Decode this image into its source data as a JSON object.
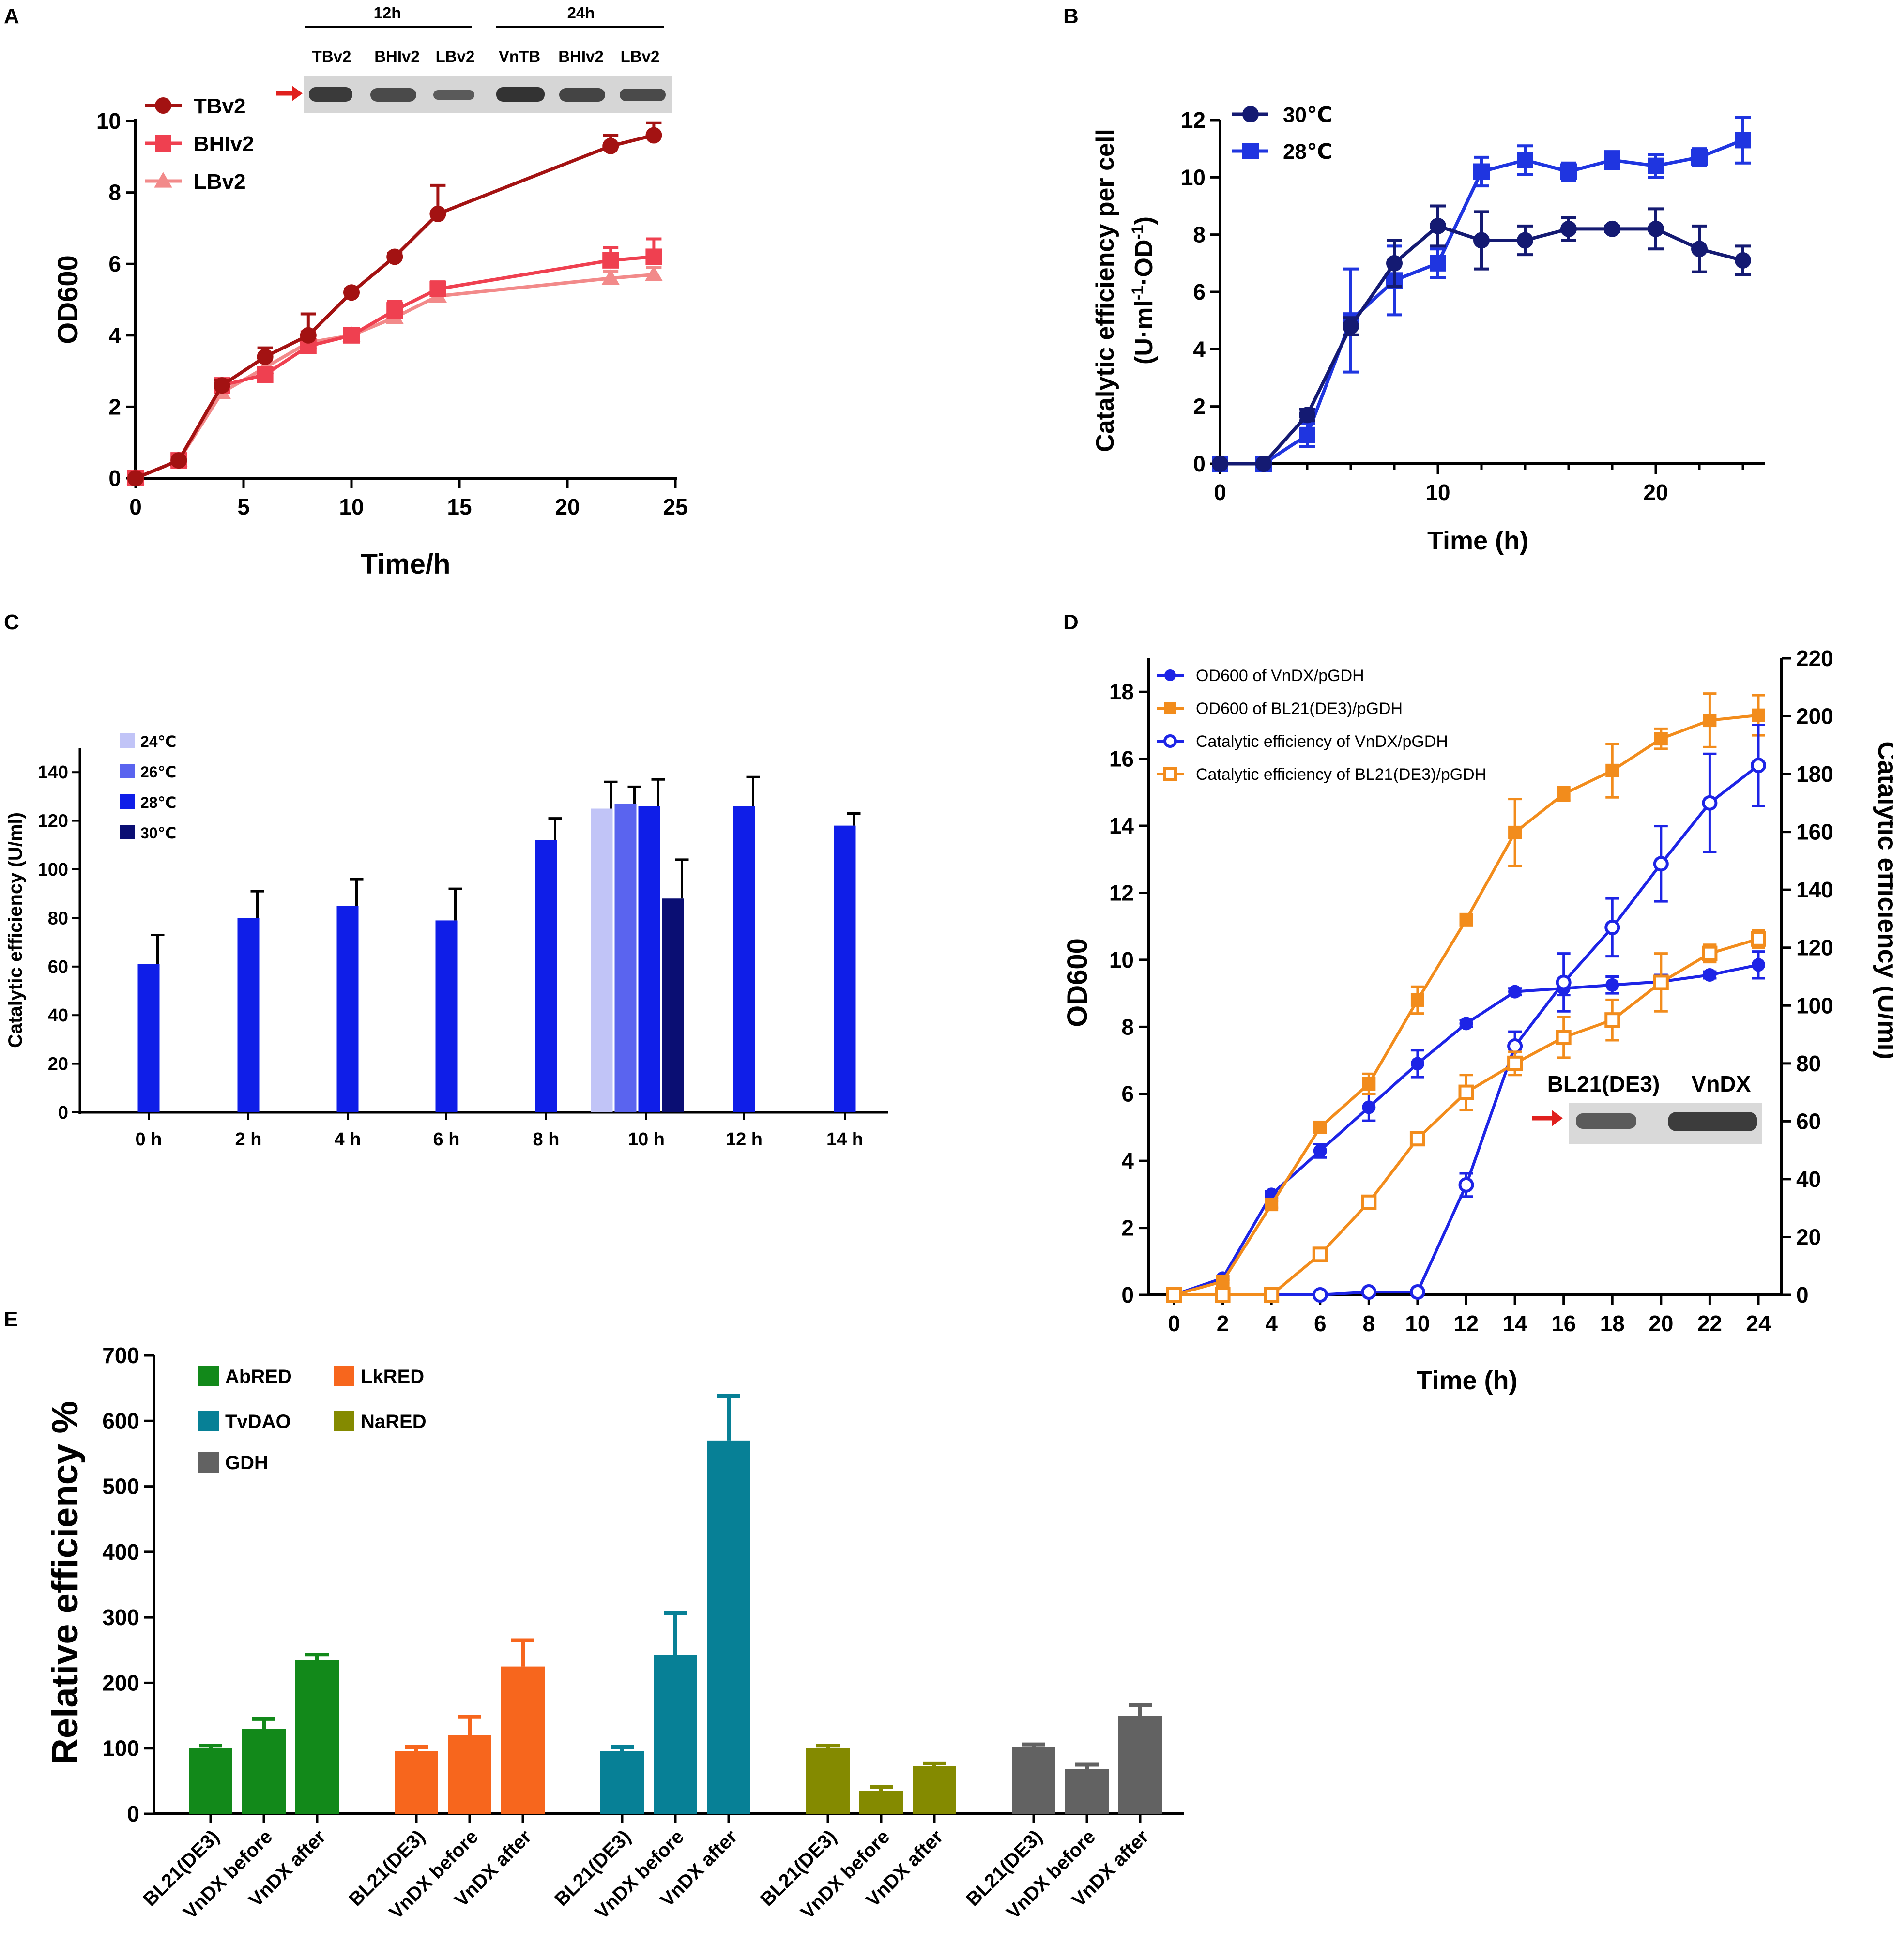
{
  "panels": {
    "A": "A",
    "B": "B",
    "C": "C",
    "D": "D",
    "E": "E"
  },
  "blots": {
    "A": {
      "groups": [
        "12h",
        "24h"
      ],
      "lanes": [
        "TBv2",
        "BHIv2",
        "LBv2",
        "VnTB",
        "BHIv2",
        "LBv2"
      ]
    },
    "D": {
      "lanes": [
        "BL21(DE3)",
        "VnDX"
      ]
    }
  },
  "chart_data": [
    {
      "panel": "A",
      "type": "line",
      "xlabel": "Time/h",
      "ylabel": "OD600",
      "xlim": [
        0,
        25
      ],
      "ylim": [
        0,
        10
      ],
      "xticks": [
        0,
        5,
        10,
        15,
        20,
        25
      ],
      "yticks": [
        0,
        2,
        4,
        6,
        8,
        10
      ],
      "series": [
        {
          "name": "LBv2",
          "color": "#f28a8a",
          "marker": "triangle",
          "x": [
            0,
            2,
            4,
            6,
            8,
            10,
            12,
            14,
            22,
            24
          ],
          "y": [
            0,
            0.5,
            2.4,
            3.1,
            3.8,
            4.0,
            4.5,
            5.1,
            5.6,
            5.7
          ],
          "err": [
            0,
            0.05,
            0.2,
            0.2,
            0.2,
            0.1,
            0.2,
            0.2,
            0.2,
            0.2
          ]
        },
        {
          "name": "BHIv2",
          "color": "#ef4050",
          "marker": "square",
          "x": [
            0,
            2,
            4,
            6,
            8,
            10,
            12,
            14,
            22,
            24
          ],
          "y": [
            0,
            0.5,
            2.6,
            2.9,
            3.7,
            4.0,
            4.7,
            5.3,
            6.1,
            6.2
          ],
          "err": [
            0,
            0.05,
            0.15,
            0.2,
            0.4,
            0.15,
            0.25,
            0.2,
            0.35,
            0.5
          ]
        },
        {
          "name": "TBv2",
          "color": "#a31212",
          "marker": "circle",
          "x": [
            0,
            2,
            4,
            6,
            8,
            10,
            12,
            14,
            22,
            24
          ],
          "y": [
            0,
            0.5,
            2.6,
            3.4,
            4.0,
            5.2,
            6.2,
            7.4,
            9.3,
            9.6
          ],
          "err": [
            0,
            0.05,
            0.15,
            0.25,
            0.6,
            0.1,
            0.1,
            0.8,
            0.3,
            0.35
          ]
        }
      ],
      "legend_order": [
        "TBv2",
        "BHIv2",
        "LBv2"
      ]
    },
    {
      "panel": "B",
      "type": "line",
      "xlabel": "Time (h)",
      "ylabel_line1": "Catalytic efficiency per cell",
      "ylabel_line2": "(U·ml",
      "ylabel_sup1": "-1",
      "ylabel_mid": "·OD",
      "ylabel_sup2": "-1",
      "ylabel_end": ")",
      "xlim": [
        0,
        25
      ],
      "ylim": [
        0,
        12
      ],
      "xticks": [
        0,
        10,
        20
      ],
      "yticks": [
        0,
        2,
        4,
        6,
        8,
        10,
        12
      ],
      "series": [
        {
          "name": "28℃",
          "color": "#1f35e0",
          "marker": "square",
          "x": [
            0,
            2,
            4,
            6,
            8,
            10,
            12,
            14,
            16,
            18,
            20,
            22,
            24
          ],
          "y": [
            0,
            0,
            1.0,
            5.0,
            6.4,
            7.0,
            10.2,
            10.6,
            10.2,
            10.6,
            10.4,
            10.7,
            11.3
          ],
          "err": [
            0,
            0,
            0.4,
            1.8,
            1.2,
            0.5,
            0.5,
            0.5,
            0.3,
            0.3,
            0.4,
            0.3,
            0.8
          ]
        },
        {
          "name": "30℃",
          "color": "#141a72",
          "marker": "circle",
          "x": [
            0,
            2,
            4,
            6,
            8,
            10,
            12,
            14,
            16,
            18,
            20,
            22,
            24
          ],
          "y": [
            0,
            0,
            1.7,
            4.8,
            7.0,
            8.3,
            7.8,
            7.8,
            8.2,
            8.2,
            8.2,
            7.5,
            7.1
          ],
          "err": [
            0,
            0,
            0.2,
            0.3,
            0.8,
            0.7,
            1.0,
            0.5,
            0.4,
            0.1,
            0.7,
            0.8,
            0.5
          ]
        }
      ],
      "legend_order": [
        "30℃",
        "28℃"
      ]
    },
    {
      "panel": "C",
      "type": "bar",
      "ylabel": "Catalytic efficiency (U/ml)",
      "ylim": [
        0,
        150
      ],
      "yticks": [
        0,
        20,
        40,
        60,
        80,
        100,
        120,
        140
      ],
      "categories": [
        "0 h",
        "2 h",
        "4 h",
        "6 h",
        "8 h",
        "10 h",
        "12 h",
        "14 h"
      ],
      "legend": [
        {
          "name": "24℃",
          "color": "#c1c4f7"
        },
        {
          "name": "26℃",
          "color": "#5a64ef"
        },
        {
          "name": "28℃",
          "color": "#0f1ee8"
        },
        {
          "name": "30℃",
          "color": "#0a0e73"
        }
      ],
      "bars": [
        {
          "category": "0 h",
          "series": "28℃",
          "value": 61,
          "err": 12
        },
        {
          "category": "2 h",
          "series": "28℃",
          "value": 80,
          "err": 11
        },
        {
          "category": "4 h",
          "series": "28℃",
          "value": 85,
          "err": 11
        },
        {
          "category": "6 h",
          "series": "28℃",
          "value": 79,
          "err": 13
        },
        {
          "category": "8 h",
          "series": "28℃",
          "value": 112,
          "err": 9
        },
        {
          "category": "10 h",
          "series": "24℃",
          "value": 125,
          "err": 11
        },
        {
          "category": "10 h",
          "series": "26℃",
          "value": 127,
          "err": 7
        },
        {
          "category": "10 h",
          "series": "28℃",
          "value": 126,
          "err": 11
        },
        {
          "category": "10 h",
          "series": "30℃",
          "value": 88,
          "err": 16
        },
        {
          "category": "12 h",
          "series": "28℃",
          "value": 126,
          "err": 12
        },
        {
          "category": "14 h",
          "series": "28℃",
          "value": 118,
          "err": 5
        }
      ]
    },
    {
      "panel": "D",
      "type": "line",
      "xlabel": "Time (h)",
      "ylabel": "OD600",
      "ylabel_right": "Catalytic efficiency (U/ml)",
      "xlim": [
        0,
        24
      ],
      "ylim": [
        0,
        19
      ],
      "ylim_right": [
        0,
        220
      ],
      "xticks": [
        0,
        2,
        4,
        6,
        8,
        10,
        12,
        14,
        16,
        18,
        20,
        22,
        24
      ],
      "yticks": [
        0,
        2,
        4,
        6,
        8,
        10,
        12,
        14,
        16,
        18
      ],
      "yticks_right": [
        0,
        20,
        40,
        60,
        80,
        100,
        120,
        140,
        160,
        180,
        200,
        220
      ],
      "series": [
        {
          "name": "OD600 of VnDX/pGDH",
          "color": "#1d24e6",
          "marker": "circle-filled",
          "axis": "left",
          "x": [
            0,
            2,
            4,
            6,
            8,
            10,
            12,
            14,
            16,
            18,
            20,
            22,
            24
          ],
          "y": [
            0,
            0.5,
            3.0,
            4.3,
            5.6,
            6.9,
            8.1,
            9.05,
            9.15,
            9.25,
            9.35,
            9.55,
            9.85
          ],
          "err": [
            0,
            0.05,
            0.1,
            0.2,
            0.4,
            0.4,
            0.1,
            0.1,
            0.2,
            0.25,
            0.2,
            0.1,
            0.4
          ]
        },
        {
          "name": "OD600 of BL21(DE3)/pGDH",
          "color": "#f28c1c",
          "marker": "square-filled",
          "axis": "left",
          "x": [
            0,
            2,
            4,
            6,
            8,
            10,
            12,
            14,
            16,
            18,
            20,
            22,
            24
          ],
          "y": [
            0,
            0.4,
            2.7,
            5.0,
            6.3,
            8.8,
            11.2,
            13.8,
            14.95,
            15.65,
            16.6,
            17.15,
            17.3
          ],
          "err": [
            0,
            0.05,
            0.1,
            0.1,
            0.3,
            0.4,
            0.1,
            1.0,
            0.2,
            0.8,
            0.3,
            0.8,
            0.6
          ]
        },
        {
          "name": "Catalytic efficiency of VnDX/pGDH",
          "color": "#1d24e6",
          "marker": "circle-open",
          "axis": "right",
          "x": [
            0,
            2,
            4,
            6,
            8,
            10,
            12,
            14,
            16,
            18,
            20,
            22,
            24
          ],
          "y": [
            0,
            0,
            0,
            0,
            1,
            1,
            38,
            86,
            108,
            127,
            149,
            170,
            183
          ],
          "err": [
            0,
            0,
            0,
            0,
            0,
            0,
            4,
            5,
            10,
            10,
            13,
            17,
            14
          ]
        },
        {
          "name": "Catalytic efficiency of BL21(DE3)/pGDH",
          "color": "#f28c1c",
          "marker": "square-open",
          "axis": "right",
          "x": [
            0,
            2,
            4,
            6,
            8,
            10,
            12,
            14,
            16,
            18,
            20,
            22,
            24
          ],
          "y": [
            0,
            0,
            0,
            14,
            32,
            54,
            70,
            80,
            89,
            95,
            108,
            118,
            123
          ],
          "err": [
            0,
            0,
            0,
            0,
            0,
            0,
            6,
            4,
            7,
            7,
            10,
            3,
            3
          ]
        }
      ]
    },
    {
      "panel": "E",
      "type": "bar",
      "ylabel": "Relative efficiency %",
      "ylim": [
        0,
        700
      ],
      "yticks": [
        0,
        100,
        200,
        300,
        400,
        500,
        600,
        700
      ],
      "categories": [
        "BL21(DE3)",
        "VnDX before",
        "VnDX after"
      ],
      "series": [
        {
          "name": "AbRED",
          "color": "#12891a",
          "values": [
            100,
            130,
            235
          ],
          "err": [
            4,
            15,
            8
          ]
        },
        {
          "name": "LkRED",
          "color": "#f7661d",
          "values": [
            96,
            120,
            225
          ],
          "err": [
            6,
            28,
            40
          ]
        },
        {
          "name": "TvDAO",
          "color": "#078096",
          "values": [
            96,
            243,
            570
          ],
          "err": [
            6,
            63,
            68
          ]
        },
        {
          "name": "NaRED",
          "color": "#848a00",
          "values": [
            100,
            35,
            73
          ],
          "err": [
            4,
            6,
            4
          ]
        },
        {
          "name": "GDH",
          "color": "#626262",
          "values": [
            102,
            68,
            150
          ],
          "err": [
            4,
            7,
            16
          ]
        }
      ],
      "legend_layout": [
        [
          "AbRED",
          "LkRED"
        ],
        [
          "TvDAO",
          "NaRED"
        ],
        [
          "GDH"
        ]
      ]
    }
  ]
}
